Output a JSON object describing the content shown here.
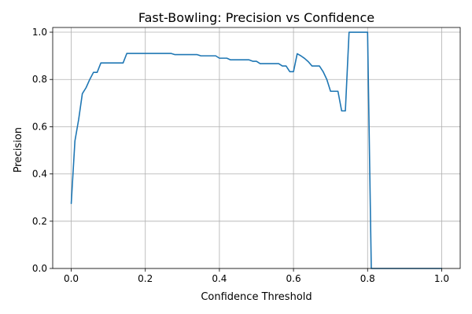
{
  "chart_data": {
    "type": "line",
    "title": "Fast-Bowling: Precision vs Confidence",
    "xlabel": "Confidence Threshold",
    "ylabel": "Precision",
    "xlim": [
      -0.05,
      1.05
    ],
    "ylim": [
      0.0,
      1.02
    ],
    "x_ticks": [
      "0.0",
      "0.2",
      "0.4",
      "0.6",
      "0.8",
      "1.0"
    ],
    "y_ticks": [
      "0.0",
      "0.2",
      "0.4",
      "0.6",
      "0.8",
      "1.0"
    ],
    "grid": true,
    "legend": "none",
    "series": [
      {
        "color": "#1f77b4",
        "x": [
          0.0,
          0.01,
          0.02,
          0.03,
          0.04,
          0.05,
          0.06,
          0.07,
          0.08,
          0.09,
          0.1,
          0.11,
          0.12,
          0.13,
          0.14,
          0.15,
          0.16,
          0.17,
          0.18,
          0.19,
          0.2,
          0.21,
          0.22,
          0.23,
          0.24,
          0.25,
          0.26,
          0.27,
          0.28,
          0.29,
          0.3,
          0.31,
          0.32,
          0.33,
          0.34,
          0.35,
          0.36,
          0.37,
          0.38,
          0.39,
          0.4,
          0.41,
          0.42,
          0.43,
          0.44,
          0.45,
          0.46,
          0.47,
          0.48,
          0.49,
          0.5,
          0.51,
          0.52,
          0.53,
          0.54,
          0.55,
          0.56,
          0.57,
          0.58,
          0.59,
          0.6,
          0.61,
          0.62,
          0.63,
          0.64,
          0.65,
          0.66,
          0.67,
          0.68,
          0.69,
          0.7,
          0.71,
          0.72,
          0.73,
          0.74,
          0.75,
          0.76,
          0.77,
          0.78,
          0.79,
          0.8,
          0.81,
          0.82,
          0.83,
          0.84,
          0.85,
          0.86,
          0.87,
          0.88,
          0.89,
          0.9,
          0.91,
          0.92,
          0.93,
          0.94,
          0.95,
          0.96,
          0.97,
          0.98,
          0.99,
          1.0
        ],
        "y": [
          0.275,
          0.54,
          0.63,
          0.74,
          0.765,
          0.8,
          0.83,
          0.83,
          0.87,
          0.87,
          0.87,
          0.87,
          0.87,
          0.87,
          0.87,
          0.91,
          0.91,
          0.91,
          0.91,
          0.91,
          0.91,
          0.91,
          0.91,
          0.91,
          0.91,
          0.91,
          0.91,
          0.91,
          0.905,
          0.905,
          0.905,
          0.905,
          0.905,
          0.905,
          0.905,
          0.9,
          0.9,
          0.9,
          0.9,
          0.9,
          0.89,
          0.89,
          0.89,
          0.883,
          0.883,
          0.883,
          0.883,
          0.883,
          0.883,
          0.877,
          0.877,
          0.867,
          0.867,
          0.867,
          0.867,
          0.867,
          0.867,
          0.857,
          0.857,
          0.833,
          0.833,
          0.909,
          0.9,
          0.889,
          0.875,
          0.857,
          0.857,
          0.857,
          0.833,
          0.8,
          0.75,
          0.75,
          0.75,
          0.667,
          0.667,
          1.0,
          1.0,
          1.0,
          1.0,
          1.0,
          1.0,
          0.0,
          0.0,
          0.0,
          0.0,
          0.0,
          0.0,
          0.0,
          0.0,
          0.0,
          0.0,
          0.0,
          0.0,
          0.0,
          0.0,
          0.0,
          0.0,
          0.0,
          0.0,
          0.0,
          0.0
        ]
      }
    ]
  }
}
